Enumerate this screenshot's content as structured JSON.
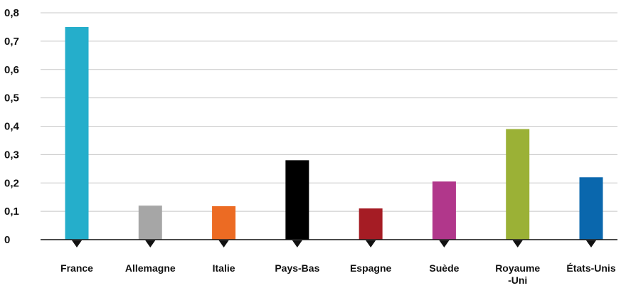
{
  "chart_data": {
    "type": "bar",
    "title": "",
    "xlabel": "",
    "ylabel": "",
    "ylim": [
      0,
      0.8
    ],
    "y_ticks": [
      "0",
      "0,1",
      "0,2",
      "0,3",
      "0,4",
      "0,5",
      "0,6",
      "0,7",
      "0,8"
    ],
    "grid": true,
    "legend": "none",
    "categories": [
      [
        "France"
      ],
      [
        "Allemagne"
      ],
      [
        "Italie"
      ],
      [
        "Pays-Bas"
      ],
      [
        "Espagne"
      ],
      [
        "Suède"
      ],
      [
        "Royaume",
        "-Uni"
      ],
      [
        "États-Unis"
      ]
    ],
    "values": [
      0.75,
      0.12,
      0.118,
      0.28,
      0.11,
      0.205,
      0.39,
      0.22
    ],
    "colors": [
      "#25aecb",
      "#a6a6a6",
      "#ec6b23",
      "#000000",
      "#a51c24",
      "#b1378b",
      "#9bb136",
      "#0a67ad"
    ]
  }
}
